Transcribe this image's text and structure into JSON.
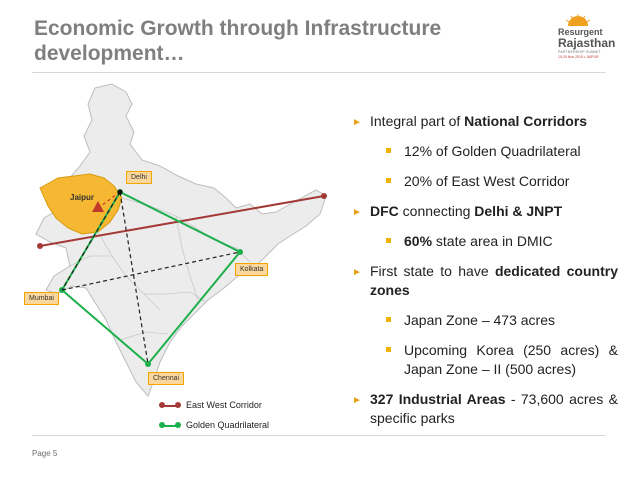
{
  "title": {
    "line1": "Economic Growth through Infrastructure",
    "line2": "development…"
  },
  "logo": {
    "line1": "Resurgent",
    "line2": "Rajasthan",
    "line3": "PARTNERSHIP SUMMIT",
    "line4": "19-20 Nov 2015 • JAIPUR"
  },
  "map": {
    "labels": {
      "delhi": "Delhi",
      "jaipur": "Jaipur",
      "kolkata": "Kolkata",
      "mumbai": "Mumbai",
      "chennai": "Chennai"
    },
    "legend": {
      "east_west": "East West Corridor",
      "golden": "Golden Quadrilateral"
    },
    "colors": {
      "east_west": "#a33a36",
      "golden": "#1db04a",
      "rajasthan": "#f6b833",
      "land": "#ececec",
      "border": "#bdbdbd"
    }
  },
  "bullets": {
    "b1": {
      "pre": "Integral part of ",
      "bold": "National Corridors"
    },
    "b1a": "12% of Golden Quadrilateral",
    "b1b": "20% of East West Corridor",
    "b2": {
      "bold1": "DFC",
      "mid": " connecting ",
      "bold2": "Delhi & JNPT"
    },
    "b2a": {
      "bold": "60%",
      "rest": " state area in DMIC"
    },
    "b3": {
      "pre": "First state to have ",
      "bold": "dedicated country zones"
    },
    "b3a": "Japan Zone – 473 acres",
    "b3b": "Upcoming Korea (250 acres) & Japan Zone – II (500 acres)",
    "b4": {
      "bold": "327 Industrial Areas",
      "rest": " - 73,600 acres & specific parks"
    }
  },
  "footer": {
    "page": "Page 5"
  }
}
